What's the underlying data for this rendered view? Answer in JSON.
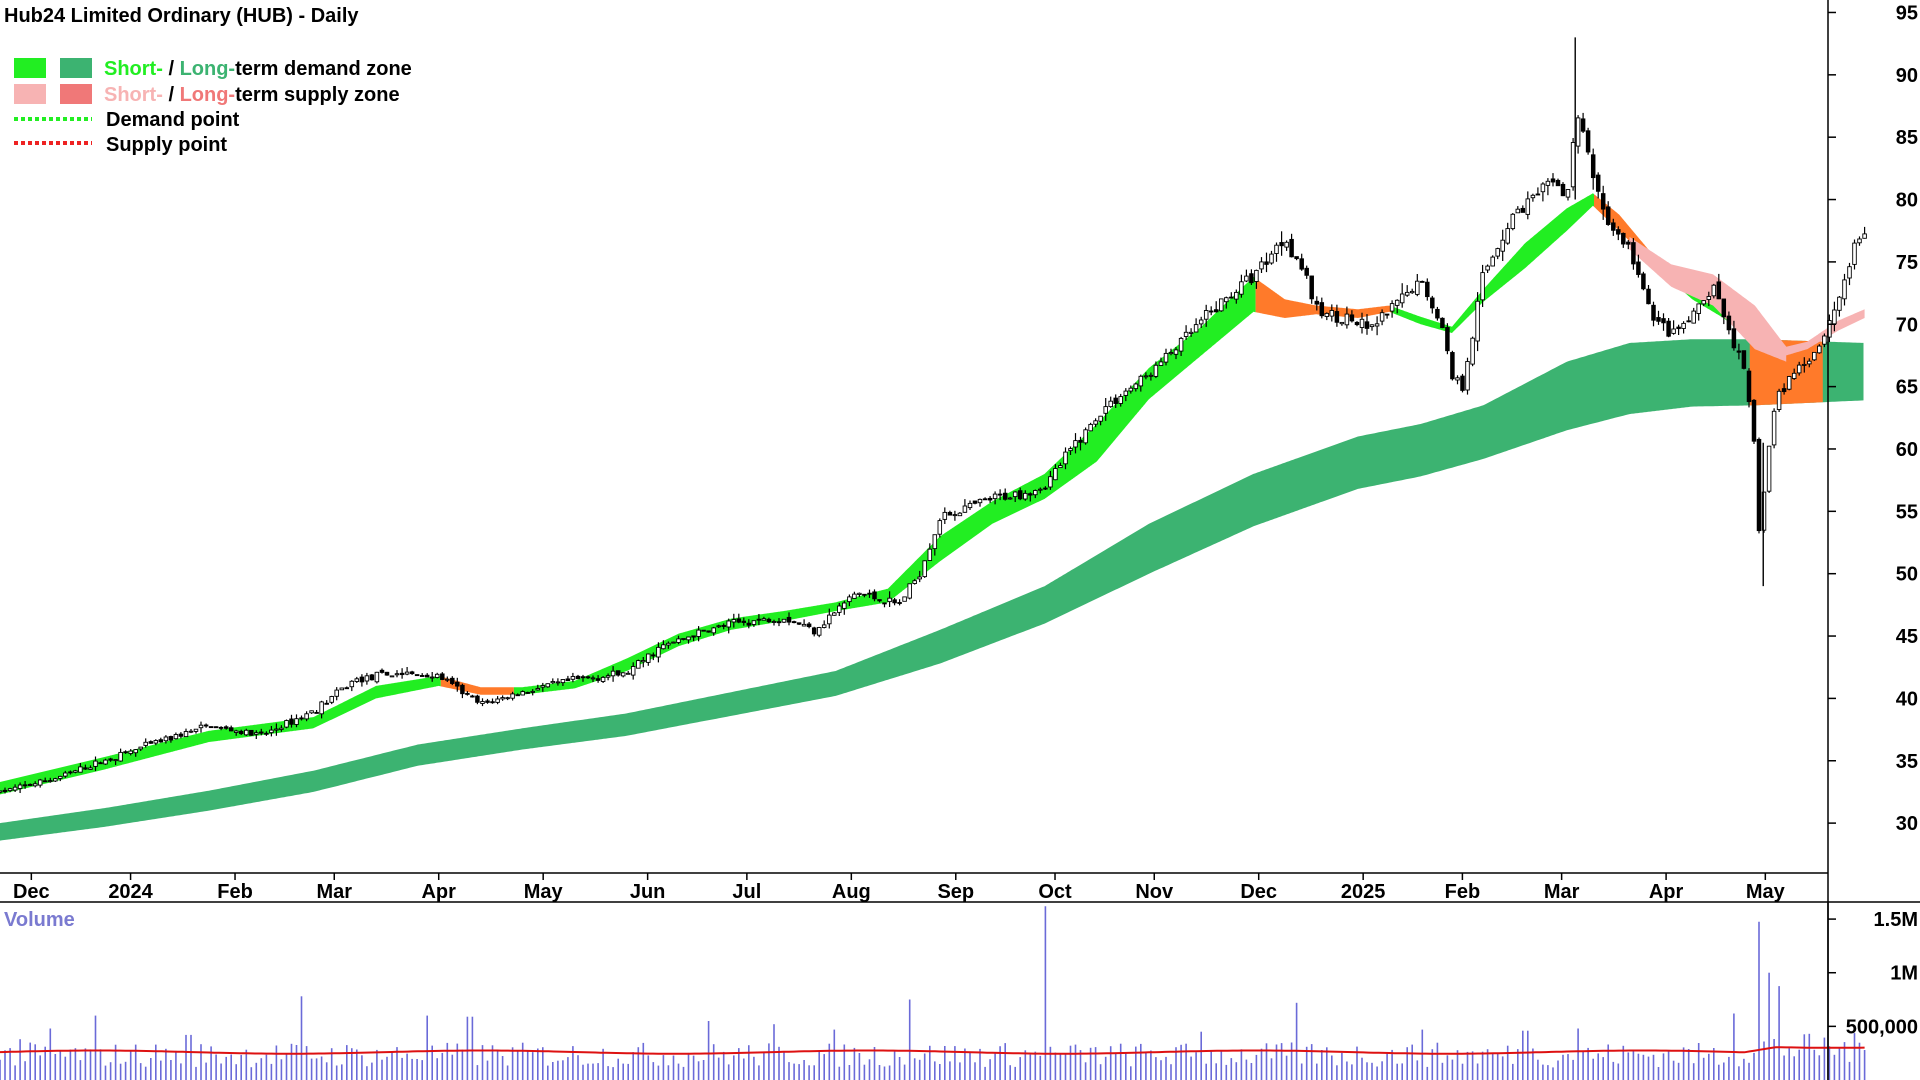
{
  "chart_data": {
    "type": "candlestick",
    "title": "Hub24 Limited Ordinary (HUB) - Daily",
    "legend": {
      "placement": "top-left",
      "items": [
        {
          "short": "Short-",
          "sep": " / ",
          "long": "Long-",
          "rest": "term demand zone",
          "short_color": "#22ee22",
          "long_color": "#3cb371"
        },
        {
          "short": "Short-",
          "sep": " / ",
          "long": "Long-",
          "rest": "term supply zone",
          "short_color": "#f7b3b3",
          "long_color": "#f07878"
        },
        {
          "label": "Demand point",
          "color": "#22ee22"
        },
        {
          "label": "Supply point",
          "color": "#ee2222"
        }
      ]
    },
    "price_axis": {
      "range": [
        26,
        96
      ],
      "ticks": [
        30,
        35,
        40,
        45,
        50,
        55,
        60,
        65,
        70,
        75,
        80,
        85,
        90,
        95
      ],
      "tick_labels": [
        "30",
        "35",
        "40",
        "45",
        "50",
        "55",
        "60",
        "65",
        "70",
        "75",
        "80",
        "85",
        "90",
        "95"
      ],
      "position": "right"
    },
    "time_axis": {
      "labels": [
        "Dec",
        "2024",
        "Feb",
        "Mar",
        "Apr",
        "May",
        "Jun",
        "Jul",
        "Aug",
        "Sep",
        "Oct",
        "Nov",
        "Dec",
        "2025",
        "Feb",
        "Mar",
        "Apr",
        "May"
      ],
      "label_pos": [
        0.3,
        1.25,
        2.25,
        3.2,
        4.2,
        5.2,
        6.2,
        7.15,
        8.15,
        9.15,
        10.1,
        11.05,
        12.05,
        13.05,
        14.0,
        14.95,
        15.95,
        16.9
      ],
      "range": [
        0,
        17.5
      ],
      "unit": "months since start of Dec 2023"
    },
    "price_path": [
      [
        0.0,
        32.5
      ],
      [
        0.5,
        33.5
      ],
      [
        1.0,
        35.0
      ],
      [
        1.5,
        36.5
      ],
      [
        2.0,
        37.8
      ],
      [
        2.5,
        37.0
      ],
      [
        3.0,
        39.0
      ],
      [
        3.4,
        41.5
      ],
      [
        3.8,
        42.0
      ],
      [
        4.2,
        41.8
      ],
      [
        4.6,
        39.5
      ],
      [
        5.0,
        40.5
      ],
      [
        5.5,
        41.5
      ],
      [
        6.0,
        42.0
      ],
      [
        6.3,
        44.0
      ],
      [
        6.6,
        45.0
      ],
      [
        7.0,
        46.0
      ],
      [
        7.5,
        46.5
      ],
      [
        7.8,
        45.5
      ],
      [
        8.2,
        48.5
      ],
      [
        8.6,
        47.5
      ],
      [
        8.8,
        50.0
      ],
      [
        9.0,
        54.5
      ],
      [
        9.5,
        56.0
      ],
      [
        9.8,
        56.5
      ],
      [
        10.0,
        57.0
      ],
      [
        10.3,
        60.5
      ],
      [
        10.6,
        63.5
      ],
      [
        11.0,
        66.0
      ],
      [
        11.3,
        68.5
      ],
      [
        11.6,
        71.0
      ],
      [
        12.0,
        74.0
      ],
      [
        12.3,
        77.0
      ],
      [
        12.5,
        74.0
      ],
      [
        12.6,
        71.0
      ],
      [
        12.9,
        70.5
      ],
      [
        13.1,
        69.5
      ],
      [
        13.3,
        71.0
      ],
      [
        13.6,
        73.5
      ],
      [
        13.8,
        70.0
      ],
      [
        13.9,
        66.0
      ],
      [
        14.0,
        65.0
      ],
      [
        14.2,
        74.0
      ],
      [
        14.5,
        79.0
      ],
      [
        14.9,
        81.5
      ],
      [
        15.0,
        80.0
      ],
      [
        15.1,
        87.0
      ],
      [
        15.25,
        82.0
      ],
      [
        15.4,
        78.0
      ],
      [
        15.6,
        76.0
      ],
      [
        15.8,
        71.0
      ],
      [
        16.0,
        69.0
      ],
      [
        16.2,
        70.5
      ],
      [
        16.4,
        73.0
      ],
      [
        16.6,
        68.5
      ],
      [
        16.7,
        66.0
      ],
      [
        16.8,
        60.0
      ],
      [
        16.85,
        52.0
      ],
      [
        16.9,
        58.0
      ],
      [
        17.0,
        64.0
      ],
      [
        17.2,
        66.5
      ],
      [
        17.4,
        68.0
      ],
      [
        17.6,
        72.0
      ],
      [
        17.75,
        76.0
      ],
      [
        17.85,
        77.5
      ]
    ],
    "short_term_zone": [
      [
        0.0,
        32.3,
        33.3
      ],
      [
        1.0,
        34.3,
        35.3
      ],
      [
        2.0,
        36.5,
        37.4
      ],
      [
        3.0,
        37.6,
        38.5
      ],
      [
        3.6,
        40.0,
        41.0
      ],
      [
        4.2,
        41.0,
        41.8
      ],
      [
        4.6,
        40.3,
        40.9
      ],
      [
        5.0,
        40.3,
        40.9
      ],
      [
        5.5,
        40.8,
        41.4
      ],
      [
        6.0,
        42.2,
        43.2
      ],
      [
        6.5,
        44.2,
        45.2
      ],
      [
        7.0,
        45.5,
        46.4
      ],
      [
        7.5,
        46.2,
        47.0
      ],
      [
        8.0,
        47.0,
        47.7
      ],
      [
        8.5,
        47.7,
        48.8
      ],
      [
        9.0,
        51.0,
        53.0
      ],
      [
        9.5,
        54.0,
        55.8
      ],
      [
        10.0,
        56.0,
        58.0
      ],
      [
        10.5,
        59.0,
        62.0
      ],
      [
        11.0,
        64.0,
        66.5
      ],
      [
        11.5,
        67.5,
        69.8
      ],
      [
        12.0,
        71.0,
        73.8
      ],
      [
        12.3,
        70.5,
        72.0
      ],
      [
        12.6,
        70.8,
        71.5
      ],
      [
        13.0,
        70.5,
        71.2
      ],
      [
        13.3,
        71.0,
        71.5
      ],
      [
        13.6,
        70.0,
        70.6
      ],
      [
        13.9,
        69.3,
        69.8
      ],
      [
        14.2,
        71.8,
        72.8
      ],
      [
        14.6,
        74.5,
        76.5
      ],
      [
        15.0,
        77.5,
        79.3
      ],
      [
        15.25,
        79.5,
        80.5
      ],
      [
        15.5,
        77.5,
        78.8
      ],
      [
        15.8,
        75.0,
        75.8
      ],
      [
        16.2,
        72.0,
        72.8
      ],
      [
        16.5,
        70.5,
        72.8
      ],
      [
        16.8,
        68.5,
        70.5
      ],
      [
        17.1,
        67.5,
        68.2
      ],
      [
        17.3,
        68.0,
        68.6
      ],
      [
        17.6,
        69.5,
        70.3
      ],
      [
        17.85,
        70.5,
        71.2
      ]
    ],
    "short_zone_supply_ranges": [
      [
        4.2,
        4.9
      ],
      [
        12.0,
        13.3
      ],
      [
        15.25,
        16.0
      ],
      [
        17.0,
        17.85
      ]
    ],
    "long_term_zone": [
      [
        0.0,
        28.6,
        30.0
      ],
      [
        1.0,
        29.7,
        31.2
      ],
      [
        2.0,
        31.0,
        32.6
      ],
      [
        3.0,
        32.5,
        34.2
      ],
      [
        4.0,
        34.6,
        36.3
      ],
      [
        5.0,
        35.9,
        37.6
      ],
      [
        6.0,
        37.0,
        38.8
      ],
      [
        7.0,
        38.6,
        40.5
      ],
      [
        8.0,
        40.2,
        42.2
      ],
      [
        9.0,
        42.8,
        45.5
      ],
      [
        10.0,
        46.0,
        49.0
      ],
      [
        11.0,
        50.0,
        54.0
      ],
      [
        12.0,
        53.8,
        58.0
      ],
      [
        13.0,
        56.8,
        61.0
      ],
      [
        13.6,
        57.8,
        62.0
      ],
      [
        14.2,
        59.2,
        63.5
      ],
      [
        15.0,
        61.5,
        67.0
      ],
      [
        15.6,
        62.8,
        68.5
      ],
      [
        16.2,
        63.4,
        68.8
      ],
      [
        16.8,
        63.5,
        68.8
      ],
      [
        17.85,
        63.9,
        68.5
      ]
    ],
    "long_zone_supply_range": [
      16.75,
      17.45
    ],
    "volume": {
      "title": "Volume",
      "range": [
        0,
        1650000
      ],
      "ticks": [
        500000,
        1000000,
        1500000
      ],
      "tick_labels": [
        "500,000",
        "1M",
        "1.5M"
      ],
      "average_level": 260000,
      "spikes": [
        [
          0.2,
          380000
        ],
        [
          0.5,
          480000
        ],
        [
          0.9,
          600000
        ],
        [
          1.8,
          420000
        ],
        [
          2.9,
          780000
        ],
        [
          4.1,
          600000
        ],
        [
          4.5,
          590000
        ],
        [
          6.8,
          550000
        ],
        [
          7.4,
          520000
        ],
        [
          8.0,
          470000
        ],
        [
          8.7,
          750000
        ],
        [
          10.0,
          1620000
        ],
        [
          11.5,
          450000
        ],
        [
          12.4,
          720000
        ],
        [
          13.6,
          470000
        ],
        [
          14.6,
          460000
        ],
        [
          15.1,
          480000
        ],
        [
          16.6,
          620000
        ],
        [
          16.85,
          1180000
        ],
        [
          16.95,
          800000
        ],
        [
          17.05,
          700000
        ]
      ]
    }
  }
}
